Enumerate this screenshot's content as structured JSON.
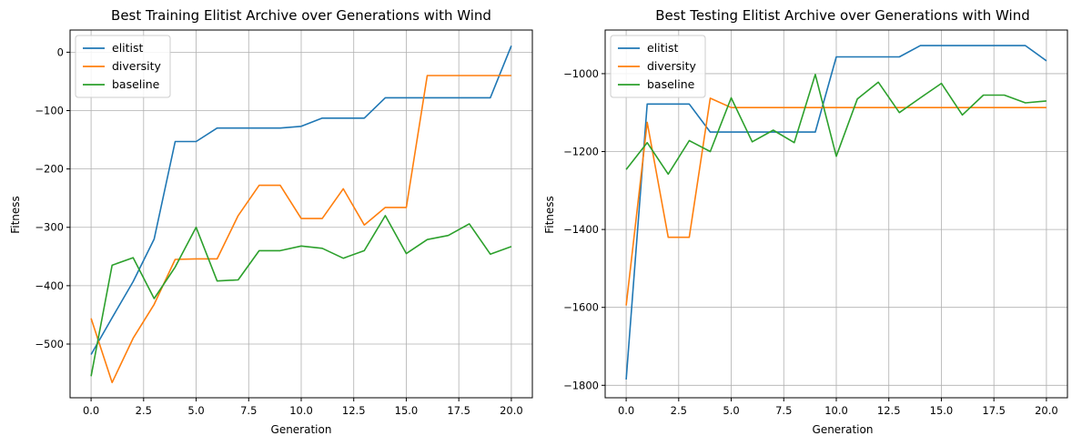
{
  "chart_data": [
    {
      "type": "line",
      "title": "Best Training Elitist Archive over Generations with Wind",
      "xlabel": "Generation",
      "ylabel": "Fitness",
      "xlim": [
        -1,
        21
      ],
      "ylim": [
        -592,
        38
      ],
      "xticks": [
        0,
        2.5,
        5,
        7.5,
        10,
        12.5,
        15,
        17.5,
        20
      ],
      "xtick_labels": [
        "0.0",
        "2.5",
        "5.0",
        "7.5",
        "10.0",
        "12.5",
        "15.0",
        "17.5",
        "20.0"
      ],
      "yticks": [
        -500,
        -400,
        -300,
        -200,
        -100,
        0
      ],
      "ytick_labels": [
        "−500",
        "−400",
        "−300",
        "−200",
        "−100",
        "0"
      ],
      "grid": true,
      "legend_position": "top-left",
      "x": [
        0,
        1,
        2,
        3,
        4,
        5,
        6,
        7,
        8,
        9,
        10,
        11,
        12,
        13,
        14,
        15,
        16,
        17,
        18,
        19,
        20
      ],
      "series": [
        {
          "name": "elitist",
          "color": "#1f77b4",
          "values": [
            -518,
            -455,
            -393,
            -320,
            -153,
            -153,
            -130,
            -130,
            -130,
            -130,
            -127,
            -113,
            -113,
            -113,
            -78,
            -78,
            -78,
            -78,
            -78,
            -78,
            11
          ]
        },
        {
          "name": "diversity",
          "color": "#ff7f0e",
          "values": [
            -456,
            -566,
            -490,
            -432,
            -355,
            -354,
            -354,
            -280,
            -228,
            -228,
            -285,
            -285,
            -234,
            -296,
            -266,
            -266,
            -40,
            -40,
            -40,
            -40,
            -40
          ]
        },
        {
          "name": "baseline",
          "color": "#2ca02c",
          "values": [
            -555,
            -365,
            -352,
            -422,
            -368,
            -300,
            -392,
            -390,
            -340,
            -340,
            -332,
            -336,
            -353,
            -340,
            -280,
            -345,
            -321,
            -314,
            -294,
            -346,
            -333
          ]
        }
      ]
    },
    {
      "type": "line",
      "title": "Best Testing Elitist Archive over Generations with Wind",
      "xlabel": "Generation",
      "ylabel": "Fitness",
      "xlim": [
        -1,
        21
      ],
      "ylim": [
        -1832,
        -888
      ],
      "xticks": [
        0,
        2.5,
        5,
        7.5,
        10,
        12.5,
        15,
        17.5,
        20
      ],
      "xtick_labels": [
        "0.0",
        "2.5",
        "5.0",
        "7.5",
        "10.0",
        "12.5",
        "15.0",
        "17.5",
        "20.0"
      ],
      "yticks": [
        -1800,
        -1600,
        -1400,
        -1200,
        -1000
      ],
      "ytick_labels": [
        "−1800",
        "−1600",
        "−1400",
        "−1200",
        "−1000"
      ],
      "grid": true,
      "legend_position": "top-left",
      "x": [
        0,
        1,
        2,
        3,
        4,
        5,
        6,
        7,
        8,
        9,
        10,
        11,
        12,
        13,
        14,
        15,
        16,
        17,
        18,
        19,
        20
      ],
      "series": [
        {
          "name": "elitist",
          "color": "#1f77b4",
          "values": [
            -1785,
            -1078,
            -1078,
            -1078,
            -1150,
            -1150,
            -1150,
            -1150,
            -1150,
            -1150,
            -957,
            -957,
            -957,
            -957,
            -928,
            -928,
            -928,
            -928,
            -928,
            -928,
            -967
          ]
        },
        {
          "name": "diversity",
          "color": "#ff7f0e",
          "values": [
            -1595,
            -1125,
            -1420,
            -1420,
            -1063,
            -1087,
            -1087,
            -1087,
            -1087,
            -1087,
            -1087,
            -1087,
            -1087,
            -1087,
            -1087,
            -1087,
            -1087,
            -1087,
            -1087,
            -1087,
            -1087
          ]
        },
        {
          "name": "baseline",
          "color": "#2ca02c",
          "values": [
            -1246,
            -1177,
            -1258,
            -1172,
            -1200,
            -1062,
            -1175,
            -1145,
            -1177,
            -1002,
            -1212,
            -1065,
            -1022,
            -1100,
            -1062,
            -1025,
            -1106,
            -1055,
            -1055,
            -1075,
            -1070
          ]
        }
      ]
    }
  ]
}
